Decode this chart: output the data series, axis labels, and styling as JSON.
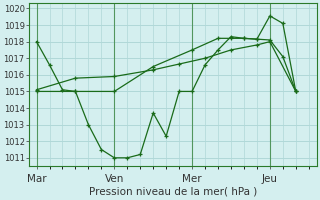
{
  "background_color": "#d4efef",
  "grid_color": "#b0d8d8",
  "line_color": "#1a6b1a",
  "x_tick_positions": [
    0,
    3,
    6,
    9
  ],
  "x_tick_labels": [
    "Mar",
    "Ven",
    "Mer",
    "Jeu"
  ],
  "ylim": [
    1010.5,
    1020.3
  ],
  "yticks": [
    1011,
    1012,
    1013,
    1014,
    1015,
    1016,
    1017,
    1018,
    1019,
    1020
  ],
  "xlabel": "Pression niveau de la mer( hPa )",
  "xlim": [
    -0.3,
    10.8
  ],
  "s1_x": [
    0,
    0.5,
    1.0,
    1.5,
    2.0,
    2.5,
    3.0,
    3.5,
    4.0,
    4.5,
    5.0,
    5.5,
    6.0,
    6.5,
    7.0,
    7.5,
    8.0,
    8.5,
    9.0,
    9.5,
    10.0
  ],
  "s1_y": [
    1018.0,
    1016.6,
    1015.1,
    1015.0,
    1013.0,
    1011.5,
    1011.0,
    1011.0,
    1011.2,
    1013.7,
    1012.3,
    1015.0,
    1015.0,
    1016.6,
    1017.5,
    1018.3,
    1018.2,
    1018.15,
    1019.55,
    1019.1,
    1015.0
  ],
  "s2_x": [
    0,
    1.5,
    3.0,
    4.5,
    6.0,
    7.0,
    7.5,
    8.0,
    8.5,
    9.0,
    9.5,
    10.0
  ],
  "s2_y": [
    1015.0,
    1015.0,
    1015.0,
    1016.5,
    1017.5,
    1018.2,
    1018.2,
    1018.2,
    1018.15,
    1018.1,
    1017.1,
    1015.0
  ],
  "s3_x": [
    0,
    1.5,
    3.0,
    4.5,
    5.5,
    6.5,
    7.5,
    8.5,
    9.0,
    10.0
  ],
  "s3_y": [
    1015.1,
    1015.8,
    1015.9,
    1016.3,
    1016.65,
    1017.0,
    1017.5,
    1017.8,
    1018.0,
    1015.0
  ],
  "vline_positions": [
    0,
    3,
    6,
    9
  ],
  "vline_color": "#2a7a2a",
  "xlabel_fontsize": 7.5,
  "ytick_fontsize": 6.0,
  "xtick_fontsize": 7.5
}
